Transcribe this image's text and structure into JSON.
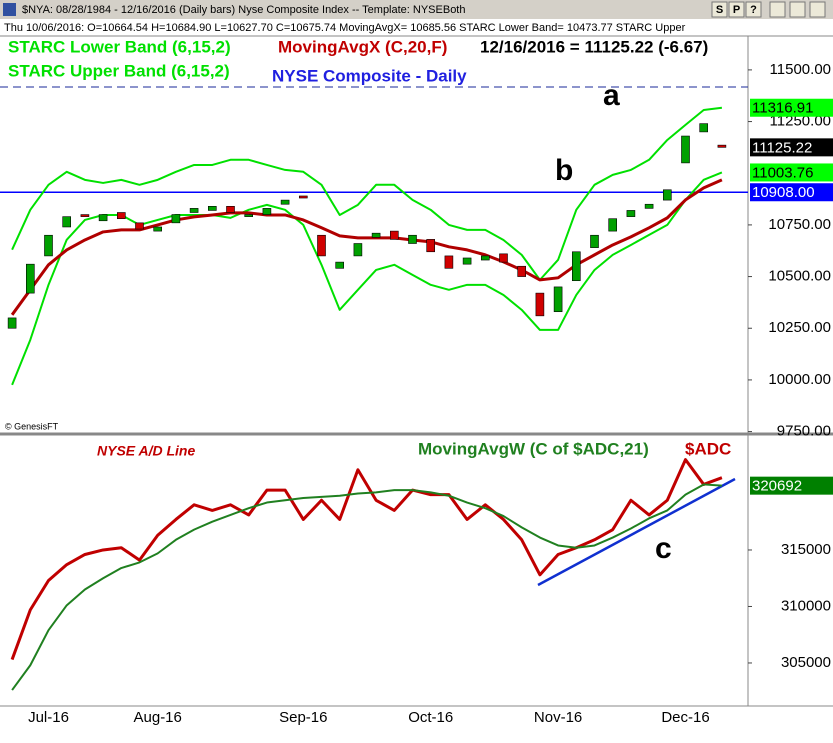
{
  "header": {
    "line1": "$NYA: 08/28/1984 - 12/16/2016 (Daily bars)   Nyse Composite Index  --  Template: NYSEBoth",
    "line2": "Thu  10/06/2016: O=10664.54 H=10684.90 L=10627.70 C=10675.74 MovingAvgX= 10685.56 STARC Lower Band= 10473.77 STARC Upper",
    "buttons": [
      "S",
      "P",
      "?"
    ]
  },
  "chart_data": [
    {
      "type": "candlestick",
      "title": "NYSE Composite - Daily",
      "legend_note": "12/16/2016 = 11125.22 (-6.67)",
      "up_color": "#00a000",
      "down_color": "#d00000",
      "open": [
        10250,
        10420,
        10600,
        10740,
        10800,
        10770,
        10810,
        10760,
        10720,
        10760,
        10810,
        10820,
        10840,
        10790,
        10800,
        10850,
        10890,
        10700,
        10540,
        10600,
        10690,
        10720,
        10660,
        10680,
        10600,
        10560,
        10580,
        10610,
        10550,
        10420,
        10330,
        10480,
        10640,
        10720,
        10790,
        10830,
        10870,
        11050,
        11200,
        11136
      ],
      "close": [
        10300,
        10560,
        10700,
        10790,
        10790,
        10800,
        10780,
        10730,
        10740,
        10800,
        10830,
        10840,
        10810,
        10800,
        10830,
        10870,
        10880,
        10600,
        10570,
        10660,
        10710,
        10680,
        10700,
        10620,
        10540,
        10590,
        10600,
        10570,
        10500,
        10310,
        10450,
        10620,
        10700,
        10780,
        10820,
        10850,
        10920,
        11180,
        11240,
        11125.22
      ],
      "series": [
        {
          "name": "STARC Upper Band (6,15,2)",
          "color": "#00e000",
          "values": [
            10630,
            10823,
            10944,
            11007,
            10968,
            10953,
            10968,
            10944,
            10968,
            11007,
            11040,
            11040,
            11065,
            11065,
            11040,
            11016,
            11007,
            10944,
            10798,
            10847,
            10944,
            10944,
            10871,
            10823,
            10750,
            10726,
            10726,
            10677,
            10605,
            10484,
            10581,
            10823,
            10944,
            10992,
            11016,
            11065,
            11161,
            11234,
            11306,
            11316.91
          ]
        },
        {
          "name": "STARC Lower Band (6,15,2)",
          "color": "#00e000",
          "values": [
            9976,
            10194,
            10460,
            10678,
            10774,
            10798,
            10798,
            10750,
            10774,
            10798,
            10798,
            10798,
            10784,
            10823,
            10847,
            10823,
            10750,
            10557,
            10339,
            10436,
            10532,
            10557,
            10508,
            10460,
            10436,
            10460,
            10460,
            10411,
            10339,
            10242,
            10242,
            10411,
            10532,
            10605,
            10653,
            10702,
            10750,
            10871,
            10968,
            11003.76
          ]
        },
        {
          "name": "MovingAvgX (C,20,F)",
          "color": "#b00000",
          "values": [
            10315,
            10436,
            10557,
            10629,
            10677,
            10716,
            10726,
            10726,
            10750,
            10774,
            10789,
            10798,
            10808,
            10808,
            10798,
            10798,
            10774,
            10736,
            10697,
            10687,
            10687,
            10687,
            10677,
            10668,
            10644,
            10629,
            10605,
            10571,
            10532,
            10484,
            10494,
            10557,
            10605,
            10653,
            10692,
            10736,
            10784,
            10871,
            10929,
            10968
          ]
        }
      ],
      "ylim": [
        9748,
        11664
      ],
      "yticks": [
        {
          "value": 9750,
          "label": "9750.00"
        },
        {
          "value": 10000,
          "label": "10000.00"
        },
        {
          "value": 10250,
          "label": "10250.00"
        },
        {
          "value": 10500,
          "label": "10500.00"
        },
        {
          "value": 10750,
          "label": "10750.00"
        },
        {
          "value": 11250,
          "label": "11250.00"
        },
        {
          "value": 11500,
          "label": "11500.00"
        }
      ],
      "reference_lines": [
        {
          "value": 10908,
          "label": "10908.00",
          "color": "#0000ff"
        }
      ],
      "tags": [
        {
          "value": 11316.91,
          "label": "11316.91",
          "color": "#00ff00",
          "text_color": "#000000"
        },
        {
          "value": 11125.22,
          "label": "11125.22",
          "color": "#000000",
          "text_color": "#ffffff"
        },
        {
          "value": 11003.76,
          "label": "11003.76",
          "color": "#00ff00",
          "text_color": "#000000"
        }
      ],
      "annotations": [
        "a",
        "b"
      ],
      "credit": "© GenesisFT"
    },
    {
      "type": "line",
      "title": "NYSE A/D Line",
      "categories": [
        null,
        null,
        "Jul-16",
        null,
        null,
        null,
        null,
        null,
        "Aug-16",
        null,
        null,
        null,
        null,
        null,
        null,
        null,
        "Sep-16",
        null,
        null,
        null,
        null,
        null,
        null,
        "Oct-16",
        null,
        null,
        null,
        null,
        null,
        null,
        "Nov-16",
        null,
        null,
        null,
        null,
        null,
        null,
        "Dec-16",
        null,
        null
      ],
      "series": [
        {
          "name": "$ADC",
          "color": "#c00000",
          "values": [
            305300,
            309700,
            312300,
            313700,
            314600,
            315000,
            315200,
            314100,
            316300,
            317700,
            319000,
            318500,
            319000,
            318100,
            320300,
            320300,
            317700,
            319400,
            317700,
            322100,
            319400,
            318500,
            320300,
            319900,
            319900,
            317700,
            319000,
            317700,
            315900,
            312800,
            314600,
            315200,
            315900,
            316800,
            319400,
            318100,
            319400,
            323000,
            320800,
            321400
          ]
        },
        {
          "name": "MovingAvgW (C of $ADC,21)",
          "color": "#208020",
          "values": [
            302600,
            304800,
            307900,
            310100,
            311500,
            312500,
            313400,
            313900,
            314700,
            315900,
            316800,
            317500,
            318100,
            318700,
            319200,
            319400,
            319600,
            319700,
            319800,
            320000,
            320100,
            320300,
            320300,
            320100,
            319800,
            319200,
            318700,
            318000,
            317000,
            316100,
            315400,
            315200,
            315400,
            316100,
            316900,
            317800,
            318500,
            319900,
            320800,
            320692
          ]
        }
      ],
      "ylim": [
        301280,
        324910
      ],
      "yticks": [
        305000,
        310000,
        315000
      ],
      "tags": [
        {
          "value": 320692,
          "label": "320692",
          "color": "#008000",
          "text_color": "#ffffff"
        }
      ],
      "annotations": [
        "c"
      ]
    }
  ]
}
